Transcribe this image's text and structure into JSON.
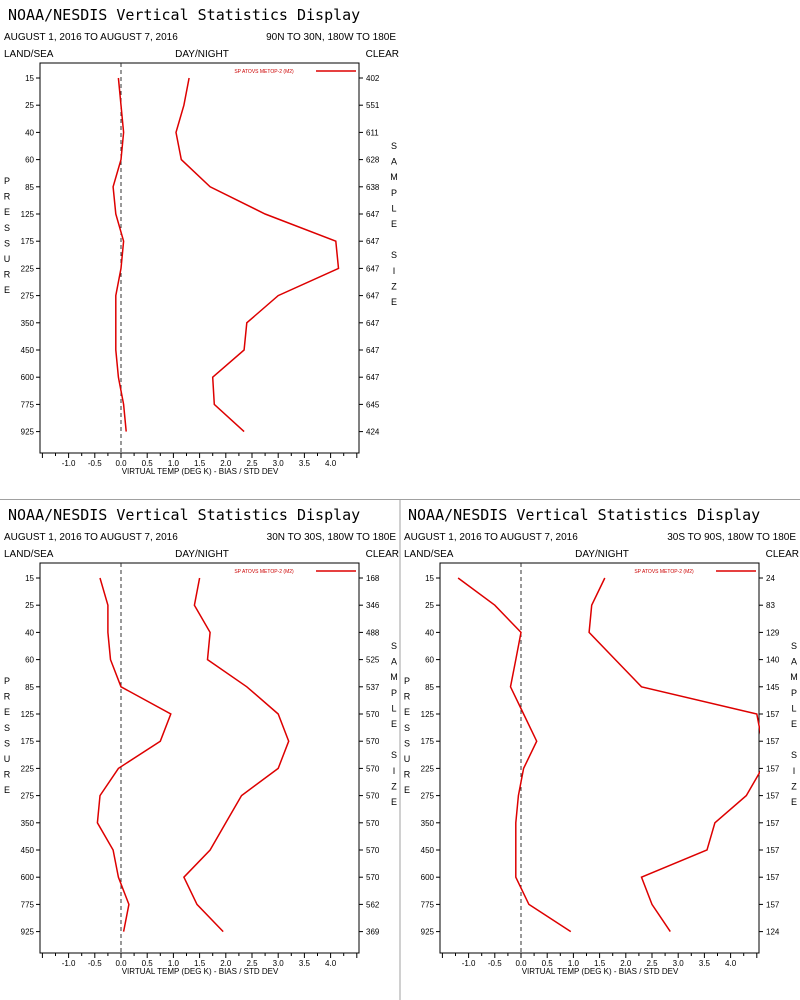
{
  "window": {
    "divider_color": "#a0a0a0",
    "accent": "#dd0000"
  },
  "chart_data": [
    {
      "type": "line",
      "title": "NOAA/NESDIS Vertical Statistics Display",
      "date_range": "AUGUST 1, 2016 TO AUGUST 7, 2016",
      "region": "90N TO 30N, 180W TO 180E",
      "corner_left": "LAND/SEA",
      "corner_center": "DAY/NIGHT",
      "corner_right": "CLEAR",
      "legend": "SP ATOVS METOP-2 (M2)",
      "xlabel": "VIRTUAL TEMP (DEG K) - BIAS / STD DEV",
      "ylabel": "PRESSURE",
      "right_label": "SAMPLE SIZE",
      "xlim": [
        -1.5,
        4.5
      ],
      "x_ticks": [
        "-1.0",
        "-0.5",
        "0.0",
        "0.5",
        "1.0",
        "1.5",
        "2.0",
        "2.5",
        "3.0",
        "3.5",
        "4.0"
      ],
      "pressure_levels": [
        "15",
        "25",
        "40",
        "60",
        "85",
        "125",
        "175",
        "225",
        "275",
        "350",
        "450",
        "600",
        "775",
        "925"
      ],
      "sample_size": [
        "402",
        "551",
        "611",
        "628",
        "638",
        "647",
        "647",
        "647",
        "647",
        "647",
        "647",
        "647",
        "645",
        "424"
      ],
      "series": [
        {
          "values": [
            -0.05,
            0.0,
            0.05,
            0.0,
            -0.15,
            -0.1,
            0.05,
            0.0,
            -0.1,
            -0.1,
            -0.1,
            -0.05,
            0.05,
            0.1
          ]
        },
        {
          "values": [
            1.3,
            1.2,
            1.05,
            1.15,
            1.7,
            2.75,
            4.1,
            4.15,
            3.0,
            2.4,
            2.35,
            1.75,
            1.78,
            2.35
          ]
        }
      ]
    },
    {
      "type": "line",
      "title": "NOAA/NESDIS Vertical Statistics Display",
      "date_range": "AUGUST 1, 2016 TO AUGUST 7, 2016",
      "region": "30N TO 30S, 180W TO 180E",
      "corner_left": "LAND/SEA",
      "corner_center": "DAY/NIGHT",
      "corner_right": "CLEAR",
      "legend": "SP ATOVS METOP-2 (M2)",
      "xlabel": "VIRTUAL TEMP (DEG K) - BIAS / STD DEV",
      "ylabel": "PRESSURE",
      "right_label": "SAMPLE SIZE",
      "xlim": [
        -1.5,
        4.5
      ],
      "x_ticks": [
        "-1.0",
        "-0.5",
        "0.0",
        "0.5",
        "1.0",
        "1.5",
        "2.0",
        "2.5",
        "3.0",
        "3.5",
        "4.0"
      ],
      "pressure_levels": [
        "15",
        "25",
        "40",
        "60",
        "85",
        "125",
        "175",
        "225",
        "275",
        "350",
        "450",
        "600",
        "775",
        "925"
      ],
      "sample_size": [
        "168",
        "346",
        "488",
        "525",
        "537",
        "570",
        "570",
        "570",
        "570",
        "570",
        "570",
        "570",
        "562",
        "369"
      ],
      "series": [
        {
          "values": [
            -0.4,
            -0.25,
            -0.25,
            -0.2,
            0.0,
            0.95,
            0.75,
            -0.05,
            -0.4,
            -0.45,
            -0.15,
            -0.05,
            0.15,
            0.05
          ]
        },
        {
          "values": [
            1.5,
            1.4,
            1.7,
            1.65,
            2.4,
            3.0,
            3.2,
            3.0,
            2.3,
            2.0,
            1.7,
            1.2,
            1.45,
            1.95
          ]
        }
      ]
    },
    {
      "type": "line",
      "title": "NOAA/NESDIS Vertical Statistics Display",
      "date_range": "AUGUST 1, 2016 TO AUGUST 7, 2016",
      "region": "30S TO 90S, 180W TO 180E",
      "corner_left": "LAND/SEA",
      "corner_center": "DAY/NIGHT",
      "corner_right": "CLEAR",
      "legend": "SP ATOVS METOP-2 (M2)",
      "xlabel": "VIRTUAL TEMP (DEG K) - BIAS / STD DEV",
      "ylabel": "PRESSURE",
      "right_label": "SAMPLE SIZE",
      "xlim": [
        -1.5,
        4.5
      ],
      "x_ticks": [
        "-1.0",
        "-0.5",
        "0.0",
        "0.5",
        "1.0",
        "1.5",
        "2.0",
        "2.5",
        "3.0",
        "3.5",
        "4.0"
      ],
      "pressure_levels": [
        "15",
        "25",
        "40",
        "60",
        "85",
        "125",
        "175",
        "225",
        "275",
        "350",
        "450",
        "600",
        "775",
        "925"
      ],
      "sample_size": [
        "24",
        "83",
        "129",
        "140",
        "145",
        "157",
        "157",
        "157",
        "157",
        "157",
        "157",
        "157",
        "157",
        "124"
      ],
      "series": [
        {
          "values": [
            -1.2,
            -0.5,
            0.0,
            -0.1,
            -0.2,
            0.05,
            0.3,
            0.05,
            -0.05,
            -0.1,
            -0.1,
            -0.1,
            0.15,
            0.95
          ]
        },
        {
          "values": [
            1.6,
            1.35,
            1.3,
            1.8,
            2.3,
            4.5,
            4.6,
            4.6,
            4.3,
            3.7,
            3.55,
            2.3,
            2.5,
            2.85
          ]
        }
      ]
    }
  ]
}
